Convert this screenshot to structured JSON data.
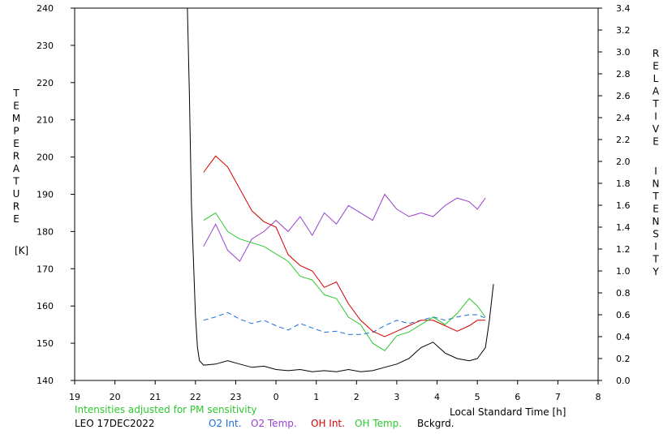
{
  "chart_data": {
    "type": "line",
    "title": "",
    "x_axis": {
      "label": "Local Standard Time [h]",
      "range": [
        19,
        32
      ],
      "tick_labels": [
        "19",
        "20",
        "21",
        "22",
        "23",
        "0",
        "1",
        "2",
        "3",
        "4",
        "5",
        "6",
        "7",
        "8"
      ]
    },
    "y_left": {
      "label_letters": [
        "T",
        "E",
        "M",
        "P",
        "E",
        "R",
        "A",
        "T",
        "U",
        "R",
        "E"
      ],
      "unit": "[K]",
      "range": [
        140,
        240
      ],
      "tick_labels": [
        "140",
        "150",
        "160",
        "170",
        "180",
        "190",
        "200",
        "210",
        "220",
        "230",
        "240"
      ]
    },
    "y_right": {
      "label_word1": [
        "R",
        "E",
        "L",
        "A",
        "T",
        "I",
        "V",
        "E"
      ],
      "label_word2": [
        "I",
        "N",
        "T",
        "E",
        "N",
        "S",
        "I",
        "T",
        "Y"
      ],
      "range": [
        0.0,
        3.4
      ],
      "tick_labels": [
        "0.0",
        "0.2",
        "0.4",
        "0.6",
        "0.8",
        "1.0",
        "1.2",
        "1.4",
        "1.6",
        "1.8",
        "2.0",
        "2.2",
        "2.4",
        "2.6",
        "2.8",
        "3.0",
        "3.2",
        "3.4"
      ]
    },
    "note": "Intensities adjusted for PM sensitivity",
    "station": "LEO 17DEC2022",
    "series": [
      {
        "name": "O2 Int.",
        "axis": "right",
        "color": "#1a6fd8",
        "style": "dashed",
        "x": [
          22.2,
          22.5,
          22.8,
          23.1,
          23.4,
          23.7,
          24.0,
          24.3,
          24.6,
          24.9,
          25.2,
          25.5,
          25.8,
          26.1,
          26.4,
          26.7,
          27.0,
          27.3,
          27.6,
          27.9,
          28.2,
          28.5,
          28.8,
          29.0,
          29.2
        ],
        "y": [
          0.55,
          0.58,
          0.62,
          0.56,
          0.52,
          0.55,
          0.5,
          0.46,
          0.52,
          0.48,
          0.44,
          0.45,
          0.42,
          0.42,
          0.44,
          0.5,
          0.55,
          0.52,
          0.55,
          0.58,
          0.55,
          0.58,
          0.6,
          0.6,
          0.57
        ]
      },
      {
        "name": "O2 Temp.",
        "axis": "left",
        "color": "#9a40d0",
        "style": "solid",
        "x": [
          22.2,
          22.5,
          22.8,
          23.1,
          23.4,
          23.7,
          24.0,
          24.3,
          24.6,
          24.9,
          25.2,
          25.5,
          25.8,
          26.1,
          26.4,
          26.7,
          27.0,
          27.3,
          27.6,
          27.9,
          28.2,
          28.5,
          28.8,
          29.0,
          29.2
        ],
        "y": [
          176,
          182,
          175,
          172,
          178,
          180,
          183,
          180,
          184,
          179,
          185,
          182,
          187,
          185,
          183,
          190,
          186,
          184,
          185,
          184,
          187,
          189,
          188,
          186,
          189
        ]
      },
      {
        "name": "OH Int.",
        "axis": "right",
        "color": "#d40000",
        "style": "solid",
        "x": [
          22.2,
          22.5,
          22.8,
          23.1,
          23.4,
          23.7,
          24.0,
          24.3,
          24.6,
          24.9,
          25.2,
          25.5,
          25.8,
          26.1,
          26.4,
          26.7,
          27.0,
          27.3,
          27.6,
          27.9,
          28.2,
          28.5,
          28.8,
          29.0,
          29.2
        ],
        "y": [
          1.9,
          2.05,
          1.95,
          1.75,
          1.55,
          1.45,
          1.4,
          1.15,
          1.05,
          1.0,
          0.85,
          0.9,
          0.7,
          0.55,
          0.45,
          0.4,
          0.45,
          0.5,
          0.55,
          0.55,
          0.5,
          0.45,
          0.5,
          0.55,
          0.55
        ]
      },
      {
        "name": "OH Temp.",
        "axis": "left",
        "color": "#2cc82c",
        "style": "solid",
        "x": [
          22.2,
          22.5,
          22.8,
          23.1,
          23.4,
          23.7,
          24.0,
          24.3,
          24.6,
          24.9,
          25.2,
          25.5,
          25.8,
          26.1,
          26.4,
          26.7,
          27.0,
          27.3,
          27.6,
          27.9,
          28.2,
          28.5,
          28.8,
          29.0,
          29.2
        ],
        "y": [
          183,
          185,
          180,
          178,
          177,
          176,
          174,
          172,
          168,
          167,
          163,
          162,
          157,
          155,
          150,
          148,
          152,
          153,
          155,
          157,
          155,
          158,
          162,
          160,
          157
        ]
      },
      {
        "name": "Bckgrd.",
        "axis": "right",
        "color": "#000000",
        "style": "solid",
        "x": [
          21.8,
          21.85,
          21.9,
          22.0,
          22.05,
          22.1,
          22.2,
          22.5,
          22.8,
          23.1,
          23.4,
          23.7,
          24.0,
          24.3,
          24.6,
          24.9,
          25.2,
          25.5,
          25.8,
          26.1,
          26.4,
          26.7,
          27.0,
          27.3,
          27.6,
          27.9,
          28.2,
          28.5,
          28.8,
          29.0,
          29.2,
          29.3,
          29.4
        ],
        "y": [
          3.45,
          2.6,
          1.6,
          0.6,
          0.3,
          0.18,
          0.14,
          0.15,
          0.18,
          0.15,
          0.12,
          0.13,
          0.1,
          0.09,
          0.1,
          0.08,
          0.09,
          0.08,
          0.1,
          0.08,
          0.09,
          0.12,
          0.15,
          0.2,
          0.3,
          0.35,
          0.25,
          0.2,
          0.18,
          0.2,
          0.3,
          0.55,
          0.88
        ]
      }
    ]
  }
}
